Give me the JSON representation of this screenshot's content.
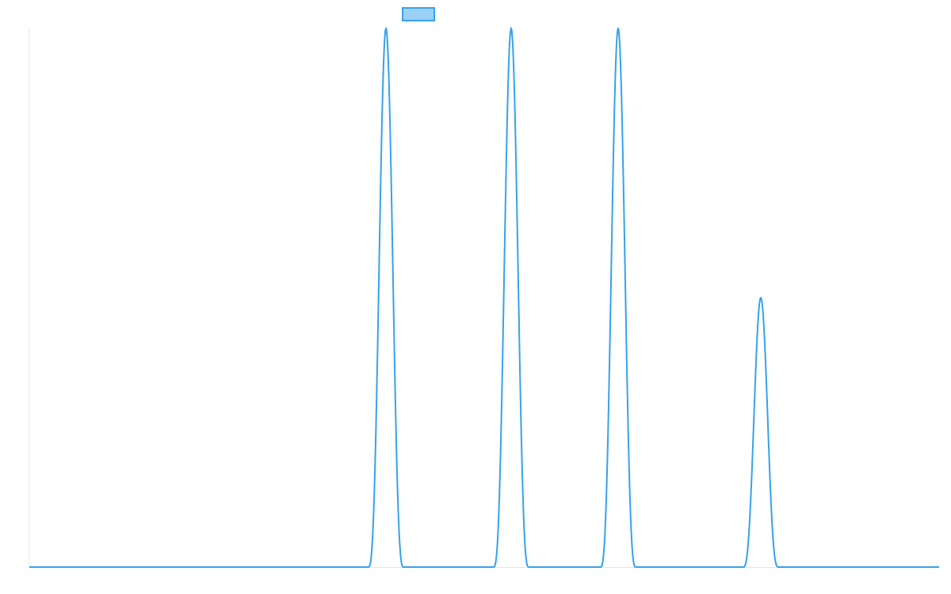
{
  "chart_data": {
    "type": "line",
    "title": "",
    "xlabel": "",
    "ylabel": "",
    "xlim": [
      0,
      100
    ],
    "ylim": [
      0,
      1
    ],
    "grid": false,
    "legend": {
      "placement": "top-center",
      "entries": [
        ""
      ]
    },
    "series": [
      {
        "name": "",
        "color": "#36a2eb",
        "fill": "#9ad0f5",
        "baseline": 0,
        "peaks": [
          {
            "center": 39.2,
            "height": 1.0,
            "half_width": 1.96
          },
          {
            "center": 52.96,
            "height": 1.0,
            "half_width": 1.96
          },
          {
            "center": 64.72,
            "height": 1.0,
            "half_width": 1.96
          },
          {
            "center": 80.4,
            "height": 0.5,
            "half_width": 1.96
          }
        ]
      }
    ]
  }
}
